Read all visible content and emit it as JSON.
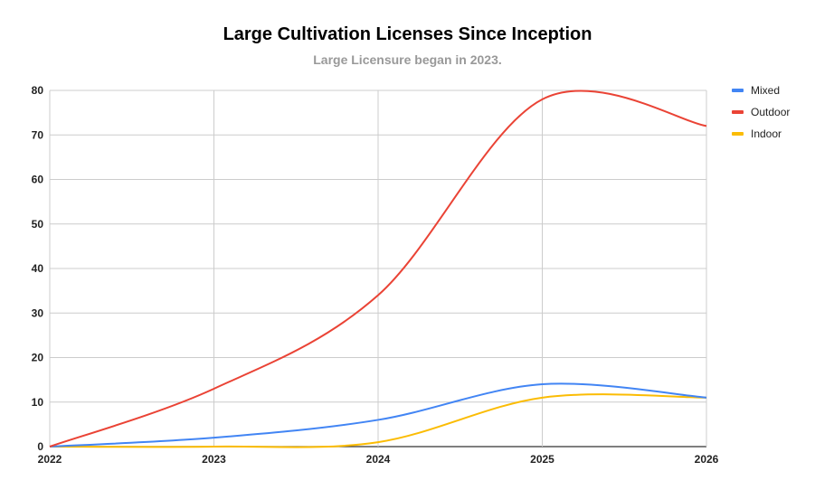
{
  "chart_data": {
    "type": "line",
    "title": "Large Cultivation Licenses Since Inception",
    "subtitle": "Large Licensure began in 2023.",
    "xlabel": "",
    "ylabel": "",
    "x": [
      "2022",
      "2023",
      "2024",
      "2025",
      "2026"
    ],
    "ylim": [
      0,
      80
    ],
    "yticks": [
      0,
      10,
      20,
      30,
      40,
      50,
      60,
      70,
      80
    ],
    "grid": true,
    "smooth": true,
    "legend_position": "right",
    "series": [
      {
        "name": "Mixed",
        "color": "#4285f4",
        "values": [
          0,
          2,
          6,
          14,
          11
        ]
      },
      {
        "name": "Outdoor",
        "color": "#ea4335",
        "values": [
          0,
          13,
          34,
          78,
          72
        ]
      },
      {
        "name": "Indoor",
        "color": "#fbbc04",
        "values": [
          0,
          0,
          1,
          11,
          11
        ]
      }
    ]
  }
}
